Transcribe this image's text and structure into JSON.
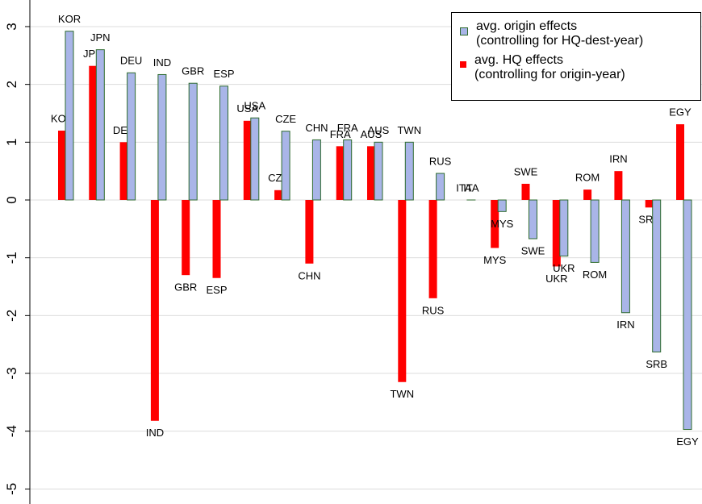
{
  "chart_data": {
    "type": "bar",
    "categories": [
      "KOR",
      "JPN",
      "DEU",
      "IND",
      "GBR",
      "ESP",
      "USA",
      "CZE",
      "CHN",
      "FRA",
      "AUS",
      "TWN",
      "RUS",
      "ITA",
      "MYS",
      "SWE",
      "UKR",
      "ROM",
      "IRN",
      "SRB",
      "EGY"
    ],
    "series": [
      {
        "name": "avg. origin effects\n(controlling for HQ-dest-year)",
        "color": "#a9b5e8",
        "values": [
          2.92,
          2.6,
          2.2,
          2.17,
          2.02,
          1.97,
          1.42,
          1.19,
          1.04,
          1.04,
          1.0,
          1.0,
          0.46,
          0,
          -0.2,
          -0.67,
          -0.97,
          -1.08,
          -1.95,
          -2.63,
          -3.97
        ]
      },
      {
        "name": "avg. HQ effects\n(controlling for origin-year)",
        "color": "#ff0000",
        "values": [
          1.2,
          2.32,
          1.0,
          -3.82,
          -1.3,
          -1.35,
          1.37,
          0.17,
          -1.1,
          0.93,
          0.93,
          -3.15,
          -1.7,
          0,
          -0.83,
          0.28,
          -1.15,
          0.18,
          0.5,
          -0.13,
          1.31
        ]
      }
    ],
    "ylim": [
      -5.26,
      3.46
    ],
    "yticks": [
      -5,
      -4,
      -3,
      -2,
      -1,
      0,
      1,
      2,
      3
    ],
    "grid": true,
    "legend": "top-right"
  }
}
